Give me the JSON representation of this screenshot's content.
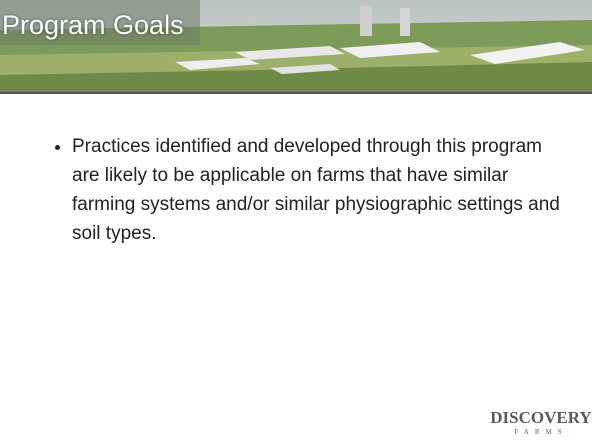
{
  "header": {
    "title": "Program Goals"
  },
  "body": {
    "bullets": [
      "Practices identified and developed through this program are likely to be applicable on farms that have similar farming systems and/or similar physiographic settings and soil types."
    ]
  },
  "logo": {
    "name": "DISCOVERY",
    "sub": "FARMS"
  }
}
